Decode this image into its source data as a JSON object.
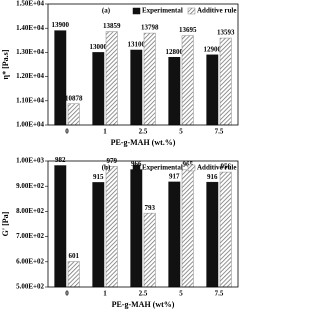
{
  "chart_data": [
    {
      "type": "bar",
      "panel_label": "(a)",
      "y_label": "η* [Pa.s]",
      "x_label": "PE-g-MAH (wt.%)",
      "categories": [
        "0",
        "1",
        "2.5",
        "5",
        "7.5"
      ],
      "series": [
        {
          "name": "Experimental",
          "color": "#111111",
          "pattern": "solid",
          "values": [
            13900,
            13000,
            13100,
            12800,
            12900
          ]
        },
        {
          "name": "Additive rule",
          "color": "#888888",
          "pattern": "hatch",
          "values": [
            10878,
            13859,
            13798,
            13695,
            13593
          ]
        }
      ],
      "ylim": [
        10000,
        15000
      ],
      "yticks": [
        {
          "value": 10000,
          "label": "1.00E+04"
        },
        {
          "value": 11000,
          "label": "1.10E+04"
        },
        {
          "value": 12000,
          "label": "1.20E+04"
        },
        {
          "value": 13000,
          "label": "1.30E+04"
        },
        {
          "value": 14000,
          "label": "1.40E+04"
        },
        {
          "value": 15000,
          "label": "1.50E+04"
        }
      ],
      "legend": "upper right"
    },
    {
      "type": "bar",
      "panel_label": "(b)",
      "y_label": "G' [Pa]",
      "x_label": "PE-g-MAH (wt%)",
      "categories": [
        "0",
        "1",
        "2.5",
        "5",
        "7.5"
      ],
      "series": [
        {
          "name": "Experimental",
          "color": "#111111",
          "pattern": "solid",
          "values": [
            982,
            915,
            966,
            917,
            916
          ]
        },
        {
          "name": "Additive rule",
          "color": "#888888",
          "pattern": "hatch",
          "values": [
            601,
            979,
            793,
            965,
            956
          ]
        }
      ],
      "ylim": [
        500,
        1000
      ],
      "yticks": [
        {
          "value": 500,
          "label": "5.00E+02"
        },
        {
          "value": 600,
          "label": "6.00E+02"
        },
        {
          "value": 700,
          "label": "7.00E+02"
        },
        {
          "value": 800,
          "label": "8.00E+02"
        },
        {
          "value": 900,
          "label": "9.00E+02"
        },
        {
          "value": 1000,
          "label": "1.00E+03"
        }
      ],
      "legend": "upper right"
    }
  ]
}
